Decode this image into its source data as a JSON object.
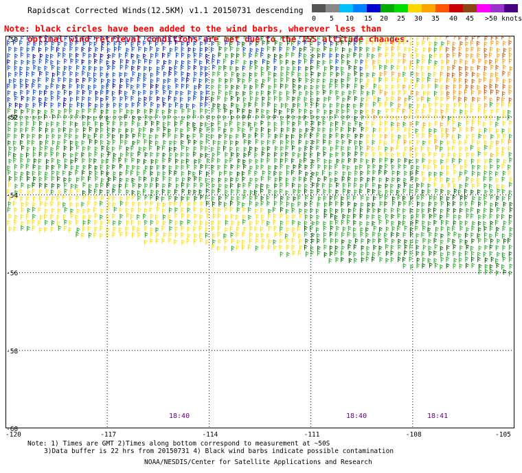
{
  "title": "Rapidscat Corrected Winds(12.5KM) v1.1 20150731 descending",
  "note": {
    "line1": "Note: black circles have been added to the wind barbs, wherever less than",
    "line2": "optimal wind retrieval conditions are met due to the ISS altitude changes."
  },
  "legend": {
    "labels": [
      "0",
      "5",
      "10",
      "15",
      "20",
      "25",
      "30",
      "35",
      "40",
      "45",
      ">50 knots"
    ],
    "colors": [
      "#555555",
      "#888888",
      "#00bfff",
      "#0080ff",
      "#0000cc",
      "#00aa00",
      "#00dd00",
      "#ffd700",
      "#ffa500",
      "#ff5500",
      "#cc0000",
      "#8b4513",
      "#ff00ff",
      "#9932cc",
      "#4b0082"
    ]
  },
  "map": {
    "lat_labels": [
      "-50",
      "-52",
      "-54",
      "-56",
      "-58",
      "-60"
    ],
    "lon_labels": [
      "-120",
      "-117",
      "-114",
      "-111",
      "-108",
      "-105"
    ],
    "time_labels": [
      "18:40",
      "18:40",
      "18:41"
    ]
  },
  "footnote": {
    "line1": "Note: 1) Times are GMT 2)Times along bottom correspond to measurement at ~50S",
    "line2": "3)Data buffer is 22 hrs from 20150731 4) Black wind barbs indicate possible contamination"
  },
  "credit": "NOAA/NESDIS/Center for Satellite Applications and Research",
  "colors": {
    "note": "#ff0000",
    "time_label": "#660088",
    "barb_blue": "#0044dd",
    "barb_darkblue": "#0000aa",
    "barb_green": "#22aa22",
    "barb_darkgreen": "#006600",
    "barb_yellow": "#ffdd00",
    "barb_orange": "#ff9900",
    "barb_darkorange": "#cc5500"
  }
}
